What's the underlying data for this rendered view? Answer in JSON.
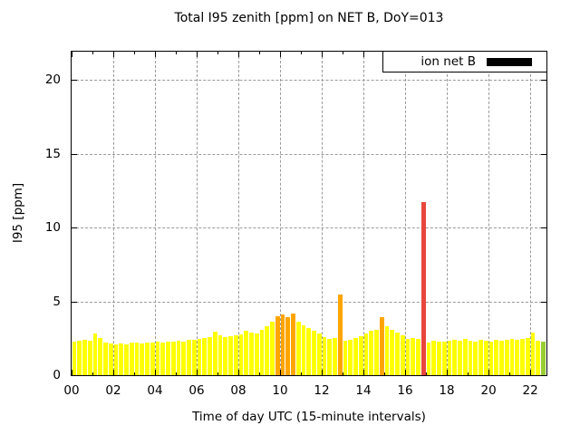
{
  "chart_data": {
    "type": "bar",
    "title": "Total I95 zenith [ppm] on NET B, DoY=013",
    "xlabel": "Time of day UTC (15-minute intervals)",
    "ylabel": "I95 [ppm]",
    "legend": {
      "label": "ion net B",
      "swatch_color": "#000000",
      "position": "top-right",
      "boxed": true
    },
    "x_axis": {
      "unit": "hours UTC",
      "min": 0,
      "max": 22.78,
      "major_tick_hours": [
        0,
        2,
        4,
        6,
        8,
        10,
        12,
        14,
        16,
        18,
        20,
        22
      ],
      "major_tick_labels": [
        "00",
        "02",
        "04",
        "06",
        "08",
        "10",
        "12",
        "14",
        "16",
        "18",
        "20",
        "22"
      ],
      "minor_tick_step_hours": 1
    },
    "y_axis": {
      "min": 0,
      "max": 21.9,
      "ticks": [
        0,
        5,
        10,
        15,
        20
      ],
      "tick_labels": [
        "0",
        "5",
        "10",
        "15",
        "20"
      ]
    },
    "grid": {
      "show": true,
      "style": "dashed",
      "color": "#9a9a9a",
      "at": "major ticks"
    },
    "bar_interval_minutes": 15,
    "colors": {
      "yellow": "#FFFF00",
      "orange": "#FFA500",
      "red": "#E8463C",
      "green": "#9ACD32"
    },
    "series": {
      "name": "ion net B",
      "default_color_name": "yellow",
      "times": [
        "00:00",
        "00:15",
        "00:30",
        "00:45",
        "01:00",
        "01:15",
        "01:30",
        "01:45",
        "02:00",
        "02:15",
        "02:30",
        "02:45",
        "03:00",
        "03:15",
        "03:30",
        "03:45",
        "04:00",
        "04:15",
        "04:30",
        "04:45",
        "05:00",
        "05:15",
        "05:30",
        "05:45",
        "06:00",
        "06:15",
        "06:30",
        "06:45",
        "07:00",
        "07:15",
        "07:30",
        "07:45",
        "08:00",
        "08:15",
        "08:30",
        "08:45",
        "09:00",
        "09:15",
        "09:30",
        "09:45",
        "10:00",
        "10:15",
        "10:30",
        "10:45",
        "11:00",
        "11:15",
        "11:30",
        "11:45",
        "12:00",
        "12:15",
        "12:30",
        "12:45",
        "13:00",
        "13:15",
        "13:30",
        "13:45",
        "14:00",
        "14:15",
        "14:30",
        "14:45",
        "15:00",
        "15:15",
        "15:30",
        "15:45",
        "16:00",
        "16:15",
        "16:30",
        "16:45",
        "17:00",
        "17:15",
        "17:30",
        "17:45",
        "18:00",
        "18:15",
        "18:30",
        "18:45",
        "19:00",
        "19:15",
        "19:30",
        "19:45",
        "20:00",
        "20:15",
        "20:30",
        "20:45",
        "21:00",
        "21:15",
        "21:30",
        "21:45",
        "22:00",
        "22:15",
        "22:30"
      ],
      "values": [
        2.3,
        2.35,
        2.4,
        2.35,
        2.8,
        2.5,
        2.2,
        2.15,
        2.1,
        2.15,
        2.1,
        2.2,
        2.2,
        2.15,
        2.2,
        2.2,
        2.25,
        2.2,
        2.3,
        2.3,
        2.35,
        2.3,
        2.4,
        2.4,
        2.45,
        2.5,
        2.55,
        2.95,
        2.7,
        2.6,
        2.65,
        2.7,
        2.75,
        3.0,
        2.9,
        2.8,
        3.1,
        3.3,
        3.6,
        4.0,
        4.1,
        3.95,
        4.2,
        3.6,
        3.4,
        3.2,
        3.0,
        2.8,
        2.6,
        2.45,
        2.5,
        5.45,
        2.35,
        2.4,
        2.5,
        2.65,
        2.85,
        3.0,
        3.05,
        3.95,
        3.3,
        3.1,
        2.9,
        2.7,
        2.45,
        2.5,
        2.45,
        11.75,
        2.2,
        2.35,
        2.3,
        2.3,
        2.35,
        2.4,
        2.35,
        2.45,
        2.35,
        2.3,
        2.4,
        2.35,
        2.3,
        2.4,
        2.35,
        2.4,
        2.45,
        2.4,
        2.45,
        2.5,
        2.9,
        2.35,
        2.3
      ],
      "color_names_by_index": {
        "39": "orange",
        "40": "orange",
        "41": "orange",
        "42": "orange",
        "51": "orange",
        "59": "orange",
        "67": "red",
        "90": "green"
      }
    }
  }
}
